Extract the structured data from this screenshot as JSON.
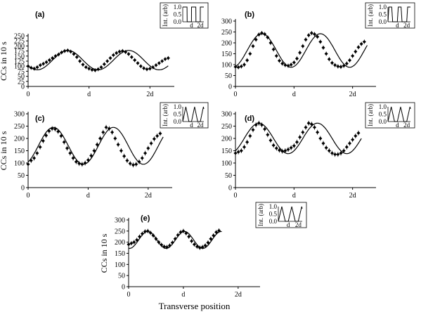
{
  "figure": {
    "xlabel": "Transverse position",
    "ylabel": "CCs in 10 s",
    "inset_ylabel": "Int. (arb)"
  },
  "chart_data": [
    {
      "panel": "(a)",
      "type": "scatter",
      "ylabel": "CCs in 10 s",
      "x_ticks": [
        "0",
        "d",
        "2d"
      ],
      "xlim": [
        0,
        2.4
      ],
      "y_ticks": [
        0,
        25,
        50,
        75,
        100,
        125,
        150,
        175,
        200,
        225,
        250
      ],
      "ylim": [
        0,
        250
      ],
      "data_points": [
        [
          0.0,
          100
        ],
        [
          0.05,
          92
        ],
        [
          0.1,
          88
        ],
        [
          0.15,
          95
        ],
        [
          0.2,
          105
        ],
        [
          0.25,
          112
        ],
        [
          0.3,
          120
        ],
        [
          0.35,
          130
        ],
        [
          0.4,
          140
        ],
        [
          0.45,
          150
        ],
        [
          0.5,
          158
        ],
        [
          0.55,
          168
        ],
        [
          0.6,
          175
        ],
        [
          0.65,
          178
        ],
        [
          0.7,
          172
        ],
        [
          0.75,
          160
        ],
        [
          0.8,
          145
        ],
        [
          0.85,
          125
        ],
        [
          0.9,
          108
        ],
        [
          0.95,
          95
        ],
        [
          1.0,
          88
        ],
        [
          1.05,
          82
        ],
        [
          1.1,
          80
        ],
        [
          1.15,
          85
        ],
        [
          1.2,
          95
        ],
        [
          1.25,
          110
        ],
        [
          1.3,
          125
        ],
        [
          1.35,
          140
        ],
        [
          1.4,
          155
        ],
        [
          1.45,
          165
        ],
        [
          1.5,
          172
        ],
        [
          1.55,
          175
        ],
        [
          1.6,
          170
        ],
        [
          1.65,
          160
        ],
        [
          1.7,
          145
        ],
        [
          1.75,
          130
        ],
        [
          1.8,
          115
        ],
        [
          1.85,
          100
        ],
        [
          1.9,
          90
        ],
        [
          1.95,
          85
        ],
        [
          2.0,
          88
        ],
        [
          2.05,
          95
        ],
        [
          2.1,
          105
        ],
        [
          2.15,
          115
        ],
        [
          2.2,
          125
        ],
        [
          2.25,
          135
        ],
        [
          2.3,
          140
        ]
      ],
      "fit": {
        "mean": 130,
        "amplitude": 48,
        "period": 1.0,
        "phase": 0.65,
        "x_range": [
          0,
          2.3
        ]
      },
      "inset": {
        "profile": "square",
        "y_ticks": [
          "0.0",
          "0.5",
          "1.0"
        ],
        "x_ticks": [
          "d",
          "2d"
        ]
      }
    },
    {
      "panel": "(b)",
      "type": "scatter",
      "ylabel": "",
      "x_ticks": [
        "0",
        "d",
        "2d"
      ],
      "xlim": [
        0,
        2.4
      ],
      "y_ticks": [
        0,
        50,
        100,
        150,
        200,
        250,
        300
      ],
      "ylim": [
        0,
        300
      ],
      "data_points": [
        [
          0.0,
          90
        ],
        [
          0.05,
          88
        ],
        [
          0.1,
          92
        ],
        [
          0.15,
          100
        ],
        [
          0.2,
          120
        ],
        [
          0.25,
          150
        ],
        [
          0.3,
          185
        ],
        [
          0.35,
          215
        ],
        [
          0.4,
          238
        ],
        [
          0.45,
          245
        ],
        [
          0.5,
          240
        ],
        [
          0.55,
          225
        ],
        [
          0.6,
          200
        ],
        [
          0.65,
          170
        ],
        [
          0.7,
          140
        ],
        [
          0.75,
          118
        ],
        [
          0.8,
          105
        ],
        [
          0.85,
          98
        ],
        [
          0.9,
          95
        ],
        [
          0.95,
          100
        ],
        [
          1.0,
          110
        ],
        [
          1.05,
          128
        ],
        [
          1.1,
          155
        ],
        [
          1.15,
          185
        ],
        [
          1.2,
          215
        ],
        [
          1.25,
          235
        ],
        [
          1.3,
          245
        ],
        [
          1.35,
          240
        ],
        [
          1.4,
          228
        ],
        [
          1.45,
          205
        ],
        [
          1.5,
          178
        ],
        [
          1.55,
          150
        ],
        [
          1.6,
          125
        ],
        [
          1.65,
          108
        ],
        [
          1.7,
          98
        ],
        [
          1.75,
          92
        ],
        [
          1.8,
          90
        ],
        [
          1.85,
          95
        ],
        [
          1.9,
          105
        ],
        [
          1.95,
          120
        ],
        [
          2.0,
          140
        ],
        [
          2.05,
          160
        ],
        [
          2.1,
          180
        ],
        [
          2.15,
          195
        ],
        [
          2.2,
          205
        ]
      ],
      "fit": {
        "mean": 165,
        "amplitude": 77,
        "period": 1.0,
        "phase": 0.45,
        "x_range": [
          0,
          2.25
        ]
      },
      "inset": {
        "profile": "trapezoid",
        "y_ticks": [
          "0.0",
          "0.5",
          "1.0"
        ],
        "x_ticks": [
          "d",
          "2d"
        ]
      }
    },
    {
      "panel": "(c)",
      "type": "scatter",
      "ylabel": "CCs in 10 s",
      "x_ticks": [
        "0",
        "d",
        "2d"
      ],
      "xlim": [
        0,
        2.4
      ],
      "y_ticks": [
        0,
        50,
        100,
        150,
        200,
        250,
        300
      ],
      "ylim": [
        0,
        300
      ],
      "data_points": [
        [
          0.0,
          95
        ],
        [
          0.05,
          110
        ],
        [
          0.1,
          120
        ],
        [
          0.15,
          140
        ],
        [
          0.2,
          165
        ],
        [
          0.25,
          190
        ],
        [
          0.3,
          212
        ],
        [
          0.35,
          230
        ],
        [
          0.4,
          240
        ],
        [
          0.45,
          238
        ],
        [
          0.5,
          228
        ],
        [
          0.55,
          210
        ],
        [
          0.6,
          185
        ],
        [
          0.65,
          160
        ],
        [
          0.7,
          140
        ],
        [
          0.75,
          120
        ],
        [
          0.8,
          105
        ],
        [
          0.85,
          98
        ],
        [
          0.9,
          95
        ],
        [
          0.95,
          100
        ],
        [
          1.0,
          112
        ],
        [
          1.05,
          130
        ],
        [
          1.1,
          150
        ],
        [
          1.15,
          175
        ],
        [
          1.2,
          200
        ],
        [
          1.25,
          225
        ],
        [
          1.3,
          245
        ],
        [
          1.35,
          240
        ],
        [
          1.4,
          225
        ],
        [
          1.45,
          200
        ],
        [
          1.5,
          175
        ],
        [
          1.55,
          150
        ],
        [
          1.6,
          128
        ],
        [
          1.65,
          110
        ],
        [
          1.7,
          98
        ],
        [
          1.75,
          92
        ],
        [
          1.8,
          95
        ],
        [
          1.85,
          105
        ],
        [
          1.9,
          120
        ],
        [
          1.95,
          140
        ],
        [
          2.0,
          160
        ],
        [
          2.05,
          180
        ],
        [
          2.1,
          198
        ],
        [
          2.15,
          210
        ],
        [
          2.2,
          220
        ]
      ],
      "fit": {
        "mean": 170,
        "amplitude": 75,
        "period": 1.0,
        "phase": 0.42,
        "x_range": [
          0,
          2.25
        ]
      },
      "inset": {
        "profile": "triangle",
        "y_ticks": [
          "0.0",
          "0.5",
          "1.0"
        ],
        "x_ticks": [
          "d",
          "2d"
        ]
      }
    },
    {
      "panel": "(d)",
      "type": "scatter",
      "ylabel": "",
      "x_ticks": [
        "0",
        "d",
        "2d"
      ],
      "xlim": [
        0,
        2.4
      ],
      "y_ticks": [
        0,
        50,
        100,
        150,
        200,
        250,
        300
      ],
      "ylim": [
        0,
        300
      ],
      "data_points": [
        [
          0.0,
          140
        ],
        [
          0.05,
          145
        ],
        [
          0.1,
          150
        ],
        [
          0.15,
          165
        ],
        [
          0.2,
          185
        ],
        [
          0.25,
          210
        ],
        [
          0.3,
          235
        ],
        [
          0.35,
          255
        ],
        [
          0.4,
          262
        ],
        [
          0.45,
          255
        ],
        [
          0.5,
          238
        ],
        [
          0.55,
          215
        ],
        [
          0.6,
          192
        ],
        [
          0.65,
          172
        ],
        [
          0.7,
          160
        ],
        [
          0.75,
          152
        ],
        [
          0.8,
          148
        ],
        [
          0.85,
          150
        ],
        [
          0.9,
          155
        ],
        [
          0.95,
          162
        ],
        [
          1.0,
          170
        ],
        [
          1.05,
          185
        ],
        [
          1.1,
          205
        ],
        [
          1.15,
          225
        ],
        [
          1.2,
          245
        ],
        [
          1.25,
          262
        ],
        [
          1.3,
          258
        ],
        [
          1.35,
          245
        ],
        [
          1.4,
          225
        ],
        [
          1.45,
          200
        ],
        [
          1.5,
          180
        ],
        [
          1.55,
          162
        ],
        [
          1.6,
          150
        ],
        [
          1.65,
          140
        ],
        [
          1.7,
          135
        ],
        [
          1.75,
          135
        ],
        [
          1.8,
          140
        ],
        [
          1.85,
          150
        ],
        [
          1.9,
          165
        ],
        [
          1.95,
          180
        ],
        [
          2.0,
          195
        ],
        [
          2.05,
          210
        ],
        [
          2.1,
          222
        ]
      ],
      "fit": {
        "mean": 200,
        "amplitude": 62,
        "period": 1.0,
        "phase": 0.4,
        "x_range": [
          0,
          2.15
        ]
      },
      "inset": {
        "profile": "triangle",
        "y_ticks": [
          "0.0",
          "0.5",
          "1.0"
        ],
        "x_ticks": [
          "d",
          "2d"
        ]
      }
    },
    {
      "panel": "(e)",
      "type": "scatter",
      "ylabel": "CCs in 10 s",
      "xlabel": "Transverse position",
      "x_ticks": [
        "0",
        "d",
        "2d"
      ],
      "xlim": [
        0,
        2.4
      ],
      "y_ticks": [
        0,
        50,
        100,
        150,
        200,
        250,
        300
      ],
      "ylim": [
        0,
        300
      ],
      "data_points": [
        [
          0.0,
          190
        ],
        [
          0.05,
          195
        ],
        [
          0.1,
          200
        ],
        [
          0.15,
          210
        ],
        [
          0.2,
          225
        ],
        [
          0.25,
          238
        ],
        [
          0.3,
          248
        ],
        [
          0.35,
          250
        ],
        [
          0.4,
          242
        ],
        [
          0.45,
          230
        ],
        [
          0.5,
          215
        ],
        [
          0.55,
          200
        ],
        [
          0.6,
          188
        ],
        [
          0.65,
          180
        ],
        [
          0.7,
          178
        ],
        [
          0.75,
          185
        ],
        [
          0.8,
          198
        ],
        [
          0.85,
          215
        ],
        [
          0.9,
          232
        ],
        [
          0.95,
          245
        ],
        [
          1.0,
          250
        ],
        [
          1.05,
          240
        ],
        [
          1.1,
          225
        ],
        [
          1.15,
          205
        ],
        [
          1.2,
          190
        ],
        [
          1.25,
          180
        ],
        [
          1.3,
          175
        ],
        [
          1.35,
          178
        ],
        [
          1.4,
          185
        ],
        [
          1.45,
          198
        ],
        [
          1.5,
          215
        ],
        [
          1.55,
          230
        ],
        [
          1.6,
          245
        ],
        [
          1.65,
          252
        ]
      ],
      "fit": {
        "mean": 210,
        "amplitude": 38,
        "period": 0.67,
        "phase": 0.35,
        "x_range": [
          0,
          1.7
        ]
      },
      "inset": {
        "profile": "triangle",
        "y_ticks": [
          "0.0",
          "0.5",
          "1.0"
        ],
        "x_ticks": [
          "d",
          "2d"
        ]
      }
    }
  ]
}
